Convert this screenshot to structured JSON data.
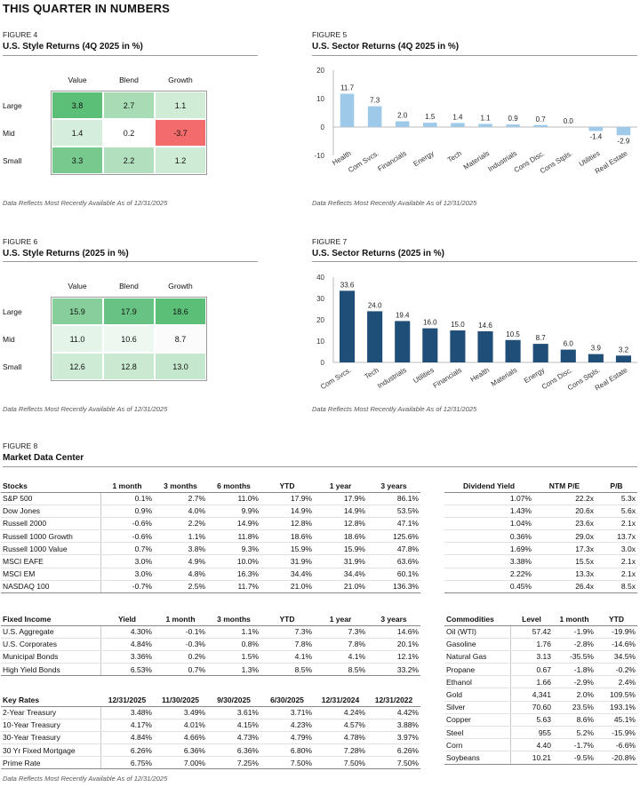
{
  "page_title": "THIS QUARTER IN NUMBERS",
  "note": "Data Reflects Most Recently Available As of 12/31/2025",
  "figures": {
    "fig4": {
      "label": "FIGURE 4",
      "title": "U.S. Style Returns (4Q 2025 in %)",
      "columns": [
        "Value",
        "Blend",
        "Growth"
      ],
      "rows": [
        "Large",
        "Mid",
        "Small"
      ],
      "values": [
        [
          "3.8",
          "2.7",
          "1.1"
        ],
        [
          "1.4",
          "0.2",
          "-3.7"
        ],
        [
          "3.3",
          "2.2",
          "1.2"
        ]
      ],
      "colors": [
        [
          "#5cbf78",
          "#a8dcb4",
          "#d0ecd7"
        ],
        [
          "#d5eedb",
          "#ffffff",
          "#f46b6b"
        ],
        [
          "#77c98e",
          "#b2e0be",
          "#cdebd5"
        ]
      ]
    },
    "fig6": {
      "label": "FIGURE 6",
      "title": "U.S. Style Returns (2025 in %)",
      "columns": [
        "Value",
        "Blend",
        "Growth"
      ],
      "rows": [
        "Large",
        "Mid",
        "Small"
      ],
      "values": [
        [
          "15.9",
          "17.9",
          "18.6"
        ],
        [
          "11.0",
          "10.6",
          "8.7"
        ],
        [
          "12.6",
          "12.8",
          "13.0"
        ]
      ],
      "colors": [
        [
          "#86cf9a",
          "#67c383",
          "#5cbf78"
        ],
        [
          "#e4f4e8",
          "#edf8f0",
          "#fbfbfb"
        ],
        [
          "#cdebd5",
          "#c9e9d1",
          "#c4e7cd"
        ]
      ]
    }
  },
  "chart_data": [
    {
      "type": "bar",
      "label": "FIGURE 5",
      "title": "U.S. Sector Returns (4Q 2025 in %)",
      "categories": [
        "Health",
        "Com Svcs.",
        "Financials",
        "Energy",
        "Tech",
        "Materials",
        "Industrials",
        "Cons Disc.",
        "Cons Stpls.",
        "Utilities",
        "Real Estate"
      ],
      "values": [
        11.7,
        7.3,
        2.0,
        1.5,
        1.4,
        1.1,
        0.9,
        0.7,
        0.0,
        -1.4,
        -2.9
      ],
      "value_labels": [
        "11.7",
        "7.3",
        "2.0",
        "1.5",
        "1.4",
        "1.1",
        "0.9",
        "0.7",
        "0.0",
        "-1.4",
        "-2.9"
      ],
      "yticks": [
        "20",
        "10",
        "0",
        "-10"
      ],
      "ylim": [
        -10,
        20
      ],
      "bar_color": "#9ec9e9",
      "grid": false
    },
    {
      "type": "bar",
      "label": "FIGURE 7",
      "title": "U.S. Sector Returns (2025 in %)",
      "categories": [
        "Com Svcs.",
        "Tech",
        "Industrials",
        "Utilities",
        "Financials",
        "Health",
        "Materials",
        "Energy",
        "Cons Disc.",
        "Cons Stpls.",
        "Real Estate"
      ],
      "values": [
        33.6,
        24.0,
        19.4,
        16.0,
        15.0,
        14.6,
        10.5,
        8.7,
        6.0,
        3.9,
        3.2
      ],
      "value_labels": [
        "33.6",
        "24.0",
        "19.4",
        "16.0",
        "15.0",
        "14.6",
        "10.5",
        "8.7",
        "6.0",
        "3.9",
        "3.2"
      ],
      "yticks": [
        "40",
        "30",
        "20",
        "10",
        "0"
      ],
      "ylim": [
        0,
        40
      ],
      "bar_color": "#1f4e79",
      "grid": false
    }
  ],
  "market": {
    "label": "FIGURE 8",
    "title": "Market Data Center",
    "stocks": {
      "headers": [
        "Stocks",
        "1 month",
        "3 months",
        "6 months",
        "YTD",
        "1 year",
        "3 years"
      ],
      "rows": [
        [
          "S&P 500",
          "0.1%",
          "2.7%",
          "11.0%",
          "17.9%",
          "17.9%",
          "86.1%"
        ],
        [
          "Dow Jones",
          "0.9%",
          "4.0%",
          "9.9%",
          "14.9%",
          "14.9%",
          "53.5%"
        ],
        [
          "Russell 2000",
          "-0.6%",
          "2.2%",
          "14.9%",
          "12.8%",
          "12.8%",
          "47.1%"
        ],
        [
          "Russell 1000 Growth",
          "-0.6%",
          "1.1%",
          "11.8%",
          "18.6%",
          "18.6%",
          "125.6%"
        ],
        [
          "Russell 1000 Value",
          "0.7%",
          "3.8%",
          "9.3%",
          "15.9%",
          "15.9%",
          "47.8%"
        ],
        [
          "MSCI EAFE",
          "3.0%",
          "4.9%",
          "10.0%",
          "31.9%",
          "31.9%",
          "63.6%"
        ],
        [
          "MSCI EM",
          "3.0%",
          "4.8%",
          "16.3%",
          "34.4%",
          "34.4%",
          "60.1%"
        ],
        [
          "NASDAQ 100",
          "-0.7%",
          "2.5%",
          "11.7%",
          "21.0%",
          "21.0%",
          "136.3%"
        ]
      ]
    },
    "dividend": {
      "headers": [
        "Dividend Yield",
        "NTM P/E",
        "P/B"
      ],
      "rows": [
        [
          "1.07%",
          "22.2x",
          "5.3x"
        ],
        [
          "1.43%",
          "20.6x",
          "5.6x"
        ],
        [
          "1.04%",
          "23.6x",
          "2.1x"
        ],
        [
          "0.36%",
          "29.0x",
          "13.7x"
        ],
        [
          "1.69%",
          "17.3x",
          "3.0x"
        ],
        [
          "3.38%",
          "15.5x",
          "2.1x"
        ],
        [
          "2.22%",
          "13.3x",
          "2.1x"
        ],
        [
          "0.45%",
          "26.4x",
          "8.5x"
        ]
      ]
    },
    "fixed_income": {
      "headers": [
        "Fixed Income",
        "Yield",
        "1 month",
        "3 months",
        "YTD",
        "1 year",
        "3 years"
      ],
      "rows": [
        [
          "U.S. Aggregate",
          "4.30%",
          "-0.1%",
          "1.1%",
          "7.3%",
          "7.3%",
          "14.6%"
        ],
        [
          "U.S. Corporates",
          "4.84%",
          "-0.3%",
          "0.8%",
          "7.8%",
          "7.8%",
          "20.1%"
        ],
        [
          "Municipal Bonds",
          "3.36%",
          "0.2%",
          "1.5%",
          "4.1%",
          "4.1%",
          "12.1%"
        ],
        [
          "High Yield Bonds",
          "6.53%",
          "0.7%",
          "1.3%",
          "8.5%",
          "8.5%",
          "33.2%"
        ]
      ]
    },
    "key_rates": {
      "headers": [
        "Key Rates",
        "12/31/2025",
        "11/30/2025",
        "9/30/2025",
        "6/30/2025",
        "12/31/2024",
        "12/31/2022"
      ],
      "rows": [
        [
          "2-Year Treasury",
          "3.48%",
          "3.49%",
          "3.61%",
          "3.71%",
          "4.24%",
          "4.42%"
        ],
        [
          "10-Year Treasury",
          "4.17%",
          "4.01%",
          "4.15%",
          "4.23%",
          "4.57%",
          "3.88%"
        ],
        [
          "30-Year Treasury",
          "4.84%",
          "4.66%",
          "4.73%",
          "4.79%",
          "4.78%",
          "3.97%"
        ],
        [
          "30 Yr Fixed Mortgage",
          "6.26%",
          "6.36%",
          "6.36%",
          "6.80%",
          "7.28%",
          "6.26%"
        ],
        [
          "Prime Rate",
          "6.75%",
          "7.00%",
          "7.25%",
          "7.50%",
          "7.50%",
          "7.50%"
        ]
      ]
    },
    "commodities": {
      "headers": [
        "Commodities",
        "Level",
        "1 month",
        "YTD"
      ],
      "rows": [
        [
          "Oil (WTI)",
          "57.42",
          "-1.9%",
          "-19.9%"
        ],
        [
          "Gasoline",
          "1.76",
          "-2.8%",
          "-14.6%"
        ],
        [
          "Natural Gas",
          "3.13",
          "-35.5%",
          "34.5%"
        ],
        [
          "Propane",
          "0.67",
          "-1.8%",
          "-0.2%"
        ],
        [
          "Ethanol",
          "1.66",
          "-2.9%",
          "2.4%"
        ],
        [
          "Gold",
          "4,341",
          "2.0%",
          "109.5%"
        ],
        [
          "Silver",
          "70.60",
          "23.5%",
          "193.1%"
        ],
        [
          "Copper",
          "5.63",
          "8.6%",
          "45.1%"
        ],
        [
          "Steel",
          "955",
          "5.2%",
          "-15.9%"
        ],
        [
          "Corn",
          "4.40",
          "-1.7%",
          "-6.6%"
        ],
        [
          "Soybeans",
          "10.21",
          "-9.5%",
          "-20.8%"
        ]
      ]
    }
  }
}
